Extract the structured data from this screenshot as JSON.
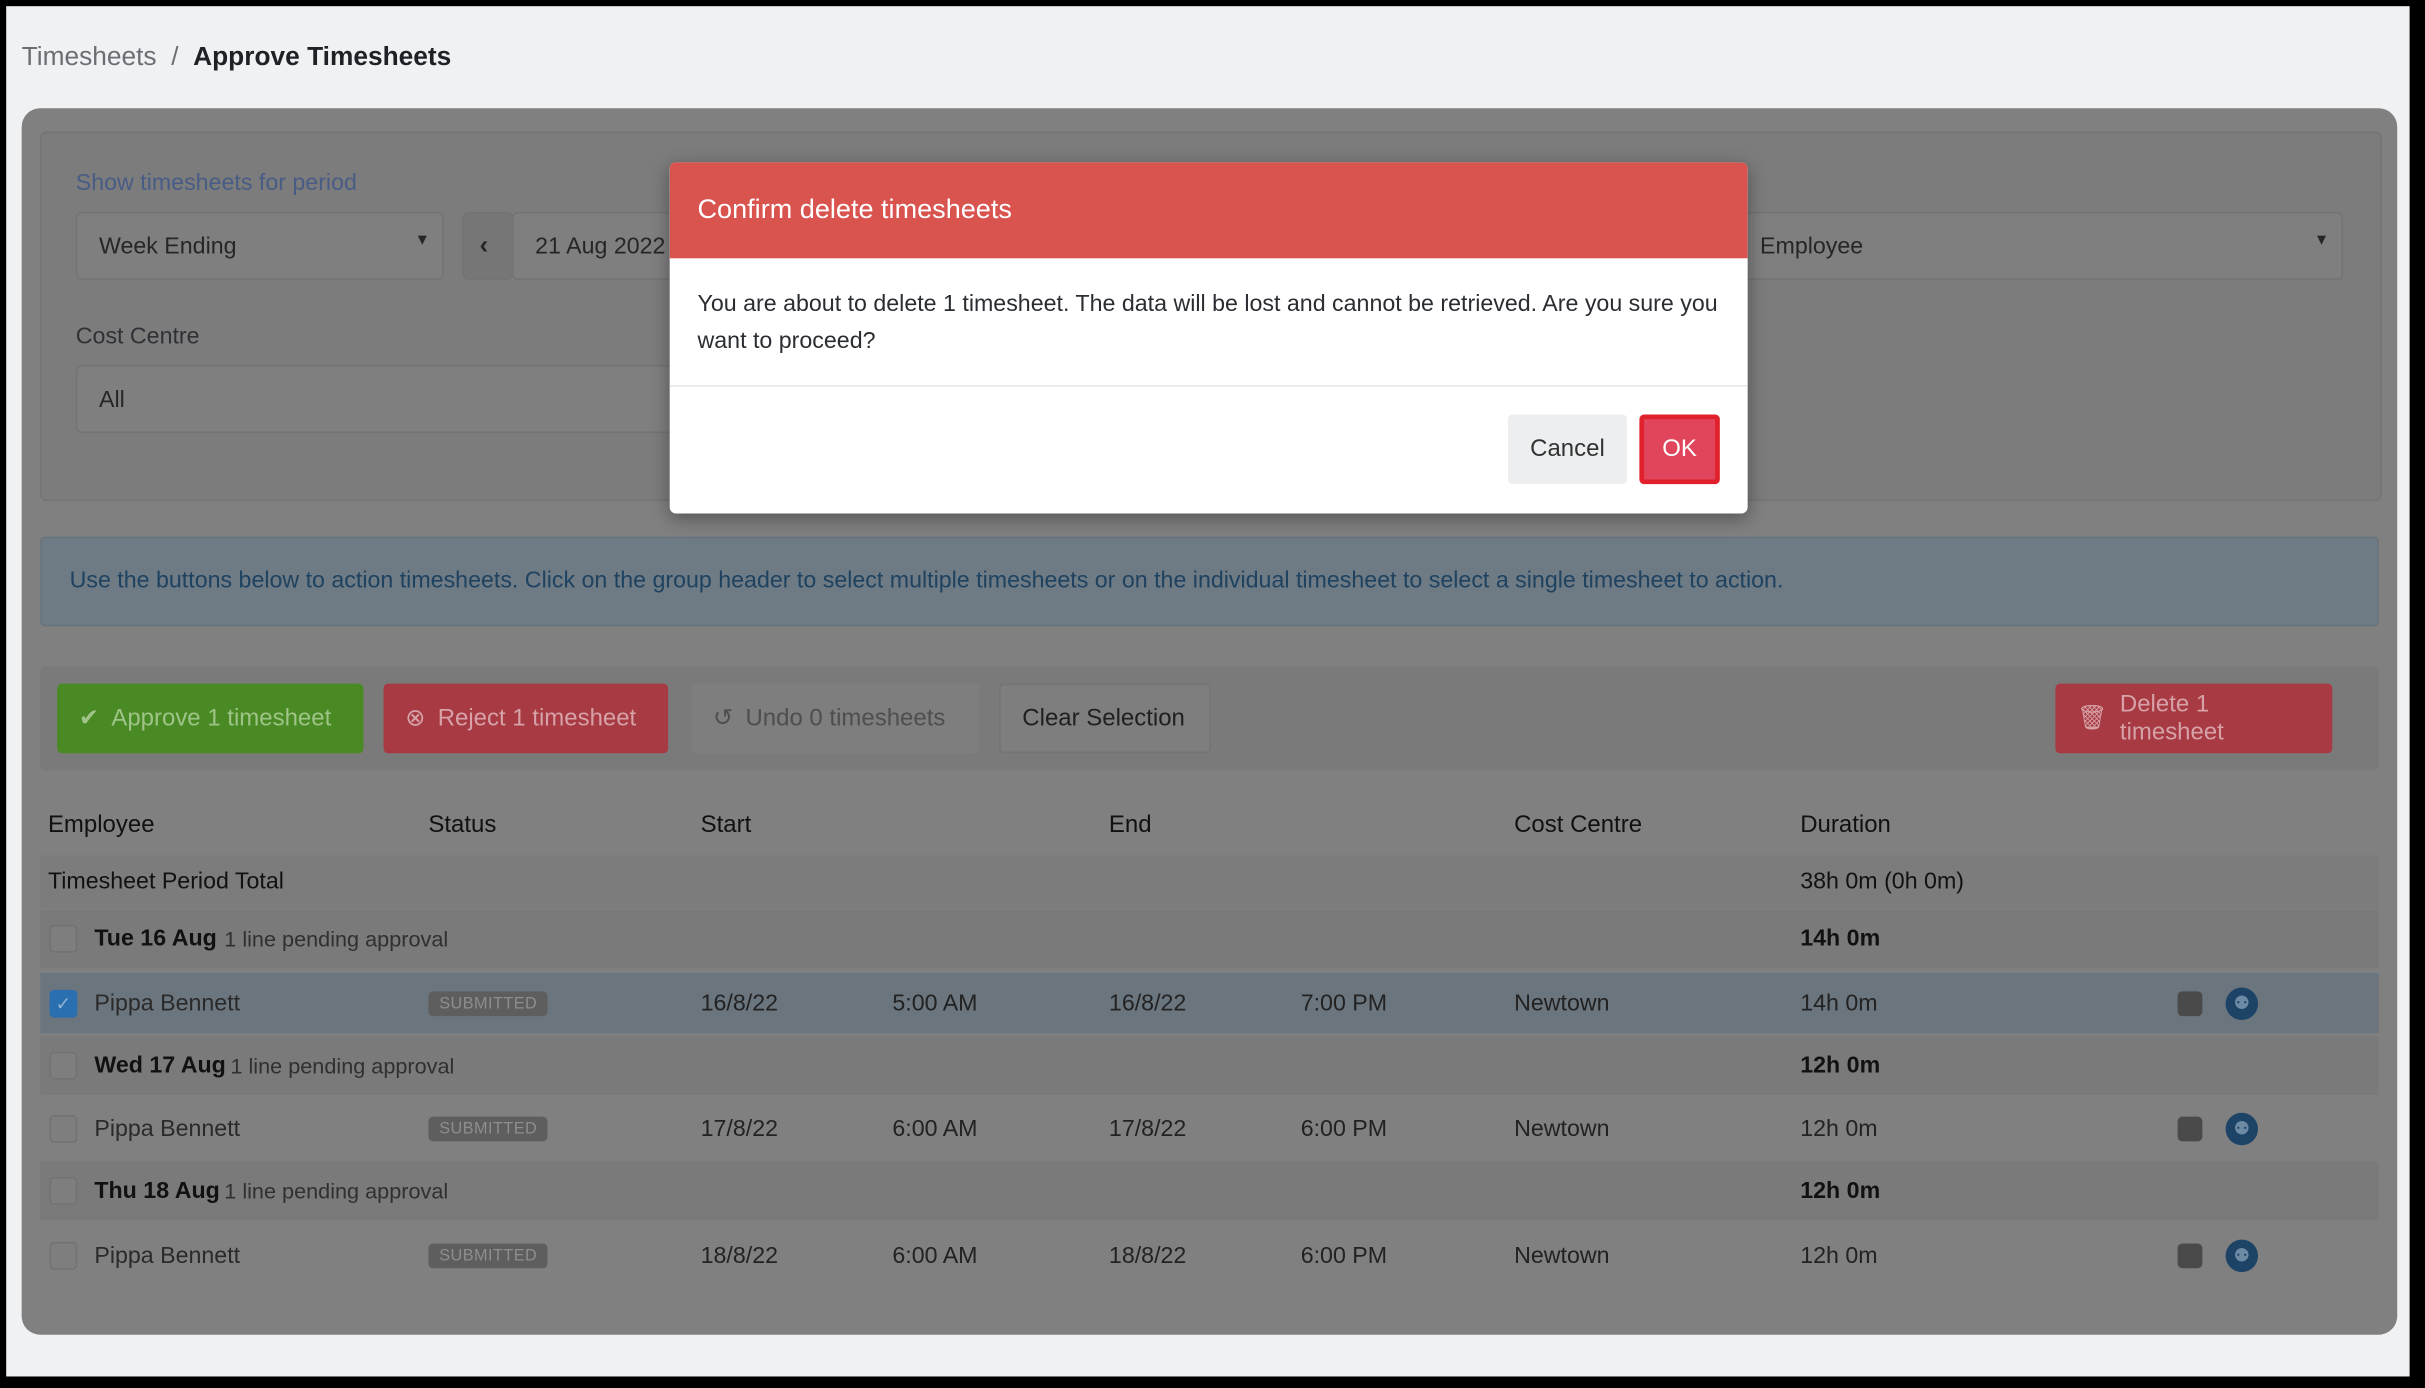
{
  "breadcrumb": {
    "parent": "Timesheets",
    "separator": "/",
    "current": "Approve Timesheets"
  },
  "filters": {
    "period_label": "Show timesheets for period",
    "period_type": "Week Ending",
    "date": "21 Aug 2022",
    "employee": "Employee",
    "cost_centre_label": "Cost Centre",
    "cost_centre": "All"
  },
  "info": "Use the buttons below to action timesheets. Click on the group header to select multiple timesheets or on the individual timesheet to select a single timesheet to action.",
  "actions": {
    "approve": "Approve 1 timesheet",
    "reject": "Reject 1 timesheet",
    "undo": "Undo 0 timesheets",
    "clear": "Clear Selection",
    "delete": "Delete 1 timesheet"
  },
  "table": {
    "headers": [
      "Employee",
      "Status",
      "Start",
      "End",
      "Cost Centre",
      "Duration"
    ],
    "total": {
      "label": "Timesheet Period Total",
      "duration": "38h 0m (0h 0m)"
    },
    "groups": [
      {
        "day": "Tue 16 Aug",
        "pending": "1 line pending approval",
        "duration": "14h 0m",
        "checked": false,
        "row": {
          "employee": "Pippa Bennett",
          "status": "SUBMITTED",
          "start_date": "16/8/22",
          "start_time": "5:00 AM",
          "end_date": "16/8/22",
          "end_time": "7:00 PM",
          "cost_centre": "Newtown",
          "duration": "14h 0m",
          "checked": true
        }
      },
      {
        "day": "Wed 17 Aug",
        "pending": "1 line pending approval",
        "duration": "12h 0m",
        "checked": false,
        "row": {
          "employee": "Pippa Bennett",
          "status": "SUBMITTED",
          "start_date": "17/8/22",
          "start_time": "6:00 AM",
          "end_date": "17/8/22",
          "end_time": "6:00 PM",
          "cost_centre": "Newtown",
          "duration": "12h 0m",
          "checked": false
        }
      },
      {
        "day": "Thu 18 Aug",
        "pending": "1 line pending approval",
        "duration": "12h 0m",
        "checked": false,
        "row": {
          "employee": "Pippa Bennett",
          "status": "SUBMITTED",
          "start_date": "18/8/22",
          "start_time": "6:00 AM",
          "end_date": "18/8/22",
          "end_time": "6:00 PM",
          "cost_centre": "Newtown",
          "duration": "12h 0m",
          "checked": false
        }
      }
    ]
  },
  "modal": {
    "title": "Confirm delete timesheets",
    "message": "You are about to delete 1 timesheet. The data will be lost and cannot be retrieved. Are you sure you want to proceed?",
    "cancel": "Cancel",
    "ok": "OK"
  },
  "colors": {
    "modal_header": "#d9534f",
    "approve": "#4a8a24",
    "reject": "#a83a44",
    "ok_border": "#e0202a"
  }
}
